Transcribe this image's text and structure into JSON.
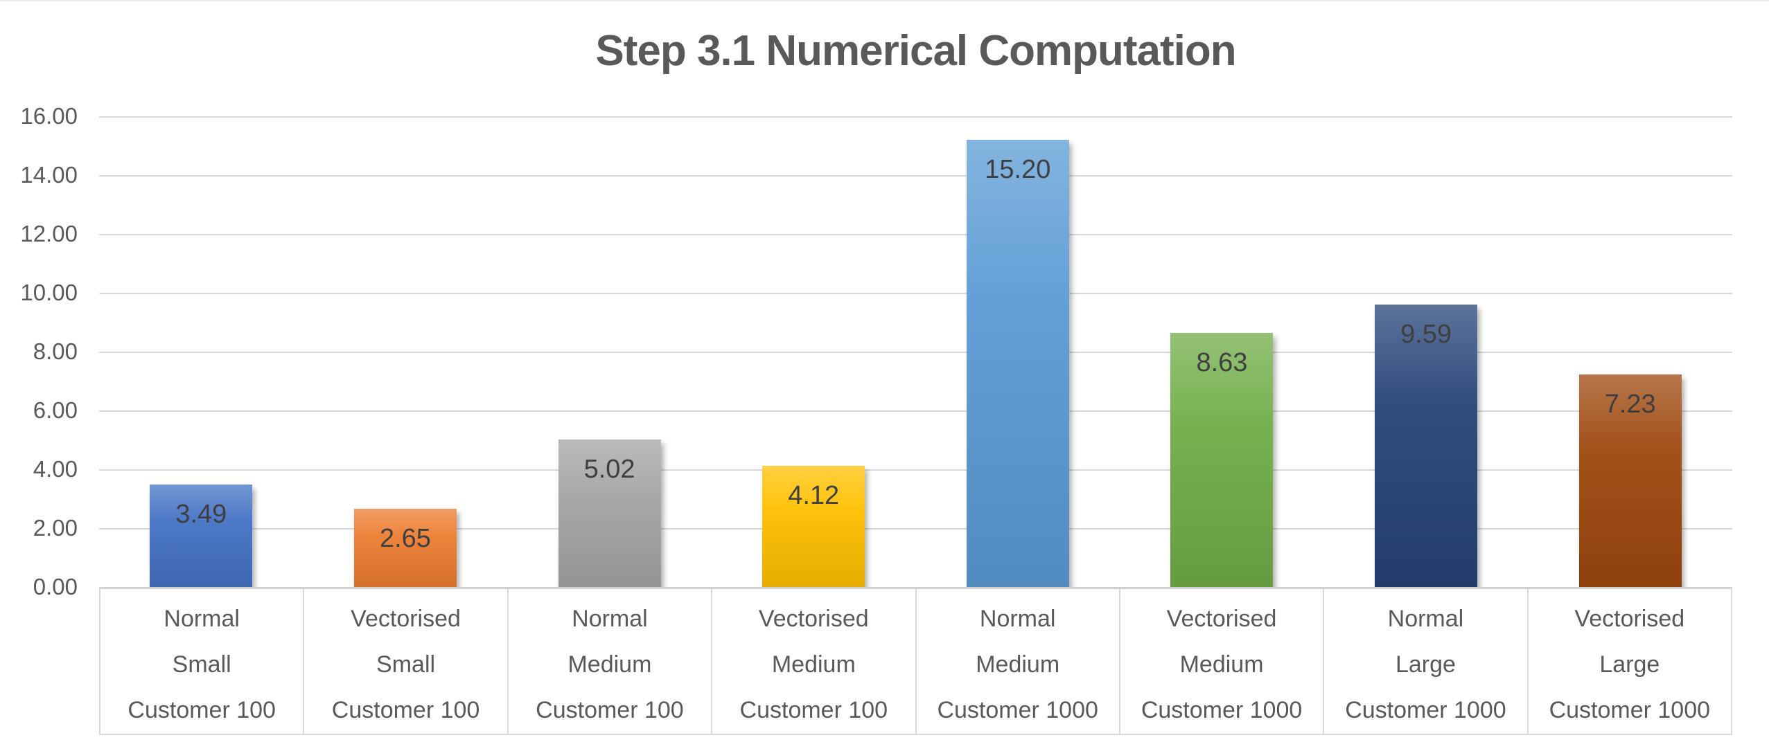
{
  "chart_data": {
    "type": "bar",
    "title": "Step 3.1 Numerical Computation",
    "xlabel": "",
    "ylabel": "",
    "ylim": [
      0,
      16
    ],
    "ytick_step": 2,
    "yticks": [
      "16.00",
      "14.00",
      "12.00",
      "10.00",
      "8.00",
      "6.00",
      "4.00",
      "2.00",
      "0.00"
    ],
    "grid": true,
    "legend": false,
    "categories": [
      [
        "Normal",
        "Small",
        "Customer 100"
      ],
      [
        "Vectorised",
        "Small",
        "Customer 100"
      ],
      [
        "Normal",
        "Medium",
        "Customer 100"
      ],
      [
        "Vectorised",
        "Medium",
        "Customer 100"
      ],
      [
        "Normal",
        "Medium",
        "Customer 1000"
      ],
      [
        "Vectorised",
        "Medium",
        "Customer 1000"
      ],
      [
        "Normal",
        "Large",
        "Customer 1000"
      ],
      [
        "Vectorised",
        "Large",
        "Customer 1000"
      ]
    ],
    "values": [
      3.49,
      2.65,
      5.02,
      4.12,
      15.2,
      8.63,
      9.59,
      7.23
    ],
    "data_labels": [
      "3.49",
      "2.65",
      "5.02",
      "4.12",
      "15.20",
      "8.63",
      "9.59",
      "7.23"
    ],
    "bar_colors": [
      "#4472C4",
      "#ED7D31",
      "#A5A5A5",
      "#FFC000",
      "#5B9BD5",
      "#70AD47",
      "#264478",
      "#9E480E"
    ],
    "colors": {
      "title_text": "#595959",
      "axis_text": "#595959",
      "data_label_text": "#3f3f3f",
      "gridline": "#d8d8d8",
      "axis_border": "#d9d9d9",
      "background": "#ffffff"
    }
  }
}
